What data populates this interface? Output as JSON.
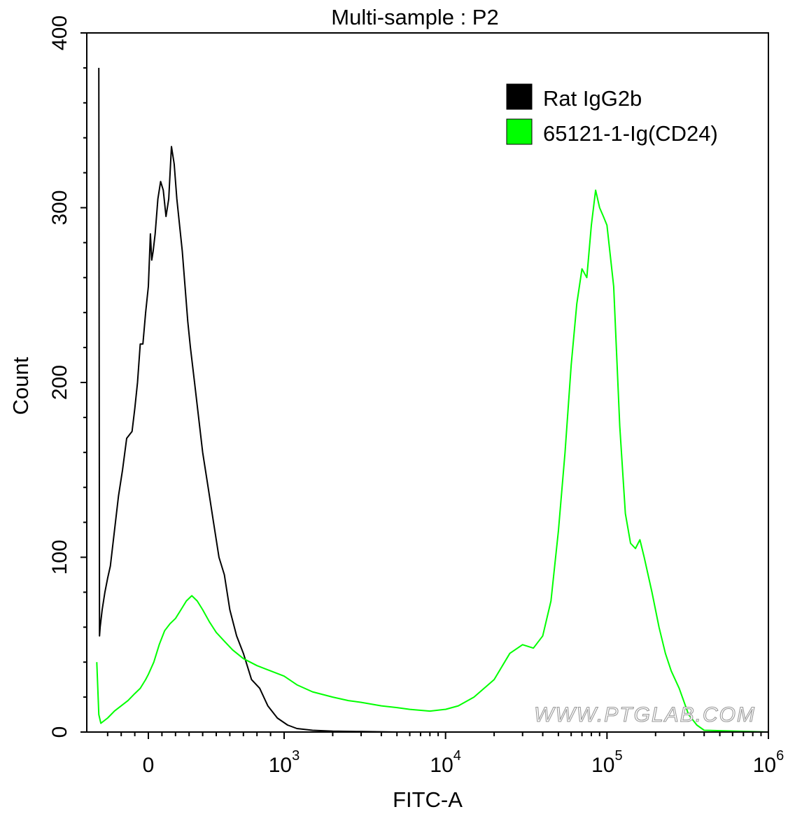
{
  "chart_data": {
    "type": "area",
    "title": "Multi-sample : P2",
    "xlabel": "FITC-A",
    "ylabel": "Count",
    "x_scale": "biexponential",
    "xlim": [
      -400,
      1000000
    ],
    "ylim": [
      0,
      400
    ],
    "y_ticks": [
      0,
      100,
      200,
      300,
      400
    ],
    "x_ticks": [
      {
        "value": 0,
        "base": "0",
        "exp": ""
      },
      {
        "value": 1000,
        "base": "10",
        "exp": "3"
      },
      {
        "value": 10000,
        "base": "10",
        "exp": "4"
      },
      {
        "value": 100000,
        "base": "10",
        "exp": "5"
      },
      {
        "value": 1000000,
        "base": "10",
        "exp": "6"
      }
    ],
    "legend": {
      "placement": "top-right"
    },
    "watermark": "WWW.PTGLAB.COM",
    "series": [
      {
        "name": "Rat IgG2b",
        "color": "#000000",
        "points": [
          [
            -365,
            380
          ],
          [
            -360,
            55
          ],
          [
            -355,
            60
          ],
          [
            -340,
            70
          ],
          [
            -320,
            80
          ],
          [
            -300,
            88
          ],
          [
            -280,
            95
          ],
          [
            -250,
            115
          ],
          [
            -220,
            135
          ],
          [
            -190,
            150
          ],
          [
            -160,
            168
          ],
          [
            -140,
            170
          ],
          [
            -120,
            172
          ],
          [
            -100,
            185
          ],
          [
            -80,
            200
          ],
          [
            -60,
            222
          ],
          [
            -40,
            222
          ],
          [
            -20,
            240
          ],
          [
            0,
            255
          ],
          [
            15,
            285
          ],
          [
            25,
            270
          ],
          [
            35,
            275
          ],
          [
            50,
            285
          ],
          [
            70,
            305
          ],
          [
            90,
            315
          ],
          [
            110,
            310
          ],
          [
            130,
            295
          ],
          [
            150,
            305
          ],
          [
            170,
            335
          ],
          [
            190,
            325
          ],
          [
            210,
            305
          ],
          [
            230,
            290
          ],
          [
            250,
            275
          ],
          [
            270,
            255
          ],
          [
            290,
            235
          ],
          [
            310,
            220
          ],
          [
            340,
            200
          ],
          [
            370,
            180
          ],
          [
            400,
            160
          ],
          [
            440,
            140
          ],
          [
            480,
            120
          ],
          [
            520,
            100
          ],
          [
            560,
            90
          ],
          [
            600,
            70
          ],
          [
            650,
            55
          ],
          [
            700,
            45
          ],
          [
            760,
            30
          ],
          [
            820,
            25
          ],
          [
            880,
            15
          ],
          [
            950,
            8
          ],
          [
            1050,
            4
          ],
          [
            1200,
            2
          ],
          [
            1500,
            1
          ],
          [
            2000,
            0.5
          ],
          [
            3000,
            0.3
          ],
          [
            5000,
            0
          ],
          [
            1000000,
            0
          ]
        ]
      },
      {
        "name": "65121-1-Ig(CD24)",
        "color": "#00ff00",
        "points": [
          [
            -380,
            40
          ],
          [
            -365,
            10
          ],
          [
            -350,
            5
          ],
          [
            -300,
            8
          ],
          [
            -250,
            12
          ],
          [
            -200,
            15
          ],
          [
            -150,
            18
          ],
          [
            -100,
            22
          ],
          [
            -60,
            25
          ],
          [
            -20,
            30
          ],
          [
            0,
            33
          ],
          [
            40,
            40
          ],
          [
            80,
            50
          ],
          [
            120,
            58
          ],
          [
            160,
            62
          ],
          [
            200,
            65
          ],
          [
            240,
            70
          ],
          [
            280,
            75
          ],
          [
            320,
            78
          ],
          [
            360,
            75
          ],
          [
            400,
            70
          ],
          [
            450,
            63
          ],
          [
            500,
            57
          ],
          [
            560,
            52
          ],
          [
            620,
            47
          ],
          [
            700,
            42
          ],
          [
            800,
            38
          ],
          [
            900,
            35
          ],
          [
            1000,
            32
          ],
          [
            1200,
            27
          ],
          [
            1500,
            23
          ],
          [
            2000,
            20
          ],
          [
            2500,
            18
          ],
          [
            3000,
            17
          ],
          [
            4000,
            15
          ],
          [
            5000,
            14
          ],
          [
            6000,
            13
          ],
          [
            8000,
            12
          ],
          [
            10000,
            13
          ],
          [
            12000,
            15
          ],
          [
            15000,
            20
          ],
          [
            20000,
            30
          ],
          [
            25000,
            45
          ],
          [
            30000,
            50
          ],
          [
            35000,
            48
          ],
          [
            40000,
            55
          ],
          [
            45000,
            75
          ],
          [
            50000,
            115
          ],
          [
            55000,
            160
          ],
          [
            60000,
            210
          ],
          [
            65000,
            245
          ],
          [
            70000,
            265
          ],
          [
            75000,
            260
          ],
          [
            80000,
            290
          ],
          [
            85000,
            310
          ],
          [
            90000,
            300
          ],
          [
            95000,
            295
          ],
          [
            100000,
            290
          ],
          [
            110000,
            255
          ],
          [
            120000,
            175
          ],
          [
            130000,
            125
          ],
          [
            140000,
            108
          ],
          [
            150000,
            105
          ],
          [
            160000,
            110
          ],
          [
            170000,
            100
          ],
          [
            190000,
            80
          ],
          [
            210000,
            60
          ],
          [
            230000,
            45
          ],
          [
            250000,
            35
          ],
          [
            280000,
            25
          ],
          [
            320000,
            10
          ],
          [
            360000,
            4
          ],
          [
            400000,
            1
          ],
          [
            1000000,
            0
          ]
        ]
      }
    ]
  }
}
